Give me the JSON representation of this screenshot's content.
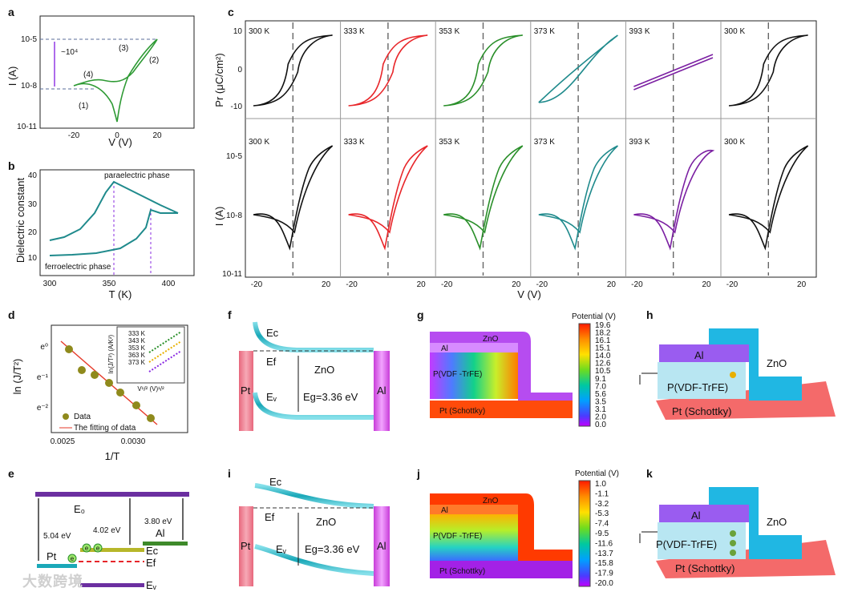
{
  "panel_labels": {
    "a": "a",
    "b": "b",
    "c": "c",
    "d": "d",
    "e": "e",
    "f": "f",
    "g": "g",
    "h": "h",
    "i": "i",
    "j": "j",
    "k": "k"
  },
  "panel_a": {
    "ylabel": "I (A)",
    "xlabel": "V (V)",
    "yticks": [
      "10-5",
      "10-8",
      "10-11"
    ],
    "xticks": [
      "-20",
      "0",
      "20"
    ],
    "annotation": "~10⁴",
    "steps": [
      "(1)",
      "(2)",
      "(3)",
      "(4)"
    ]
  },
  "panel_b": {
    "ylabel": "Dielectric constant",
    "xlabel": "T (K)",
    "xticks": [
      "300",
      "350",
      "400"
    ],
    "yticks": [
      "10",
      "20",
      "30",
      "40"
    ],
    "upper_label": "paraelectric phase",
    "lower_label": "ferroelectric phase"
  },
  "panel_c": {
    "top_ylabel": "Pr (μC/cm²)",
    "bottom_ylabel": "I (A)",
    "xlabel": "V (V)",
    "temps": [
      "300 K",
      "333 K",
      "353 K",
      "373 K",
      "393 K",
      "300 K"
    ],
    "top_yticks": [
      "10",
      "0",
      "-10"
    ],
    "bottom_yticks": [
      "10-5",
      "10-8",
      "10-11"
    ],
    "xticks": [
      "-20",
      "20"
    ],
    "colors": [
      "#111111",
      "#e8262a",
      "#2a8f2a",
      "#1f8a8c",
      "#7b1fa2",
      "#111111"
    ]
  },
  "panel_d": {
    "ylabel": "ln (J/T²)",
    "xlabel": "1/T",
    "yticks": [
      "e⁰",
      "e⁻¹",
      "e⁻²"
    ],
    "xticks": [
      "0.0025",
      "0.0030"
    ],
    "legend_data": "Data",
    "legend_fit": "The fitting of data",
    "inset_ylabel": "ln(J/T²) (A/K²)",
    "inset_xlabel": "V¹/² (V)¹/²",
    "inset_yticks": [
      "e⁻²²",
      "e⁻²⁴"
    ],
    "inset_xticks": [
      "2",
      "4"
    ],
    "inset_legend": [
      "333 K",
      "343 K",
      "353 K",
      "363 K",
      "373 K"
    ]
  },
  "panel_e": {
    "E0": "E₀",
    "v1": "5.04 eV",
    "v2": "4.02 eV",
    "v3": "3.80 eV",
    "pt": "Pt",
    "al": "Al",
    "ec": "Ec",
    "ef": "Ef",
    "ev": "Eᵥ",
    "e": "e"
  },
  "panel_f": {
    "ec": "Ec",
    "ef": "Ef",
    "ev": "Eᵥ",
    "pt": "Pt",
    "al": "Al",
    "zno": "ZnO",
    "eg": "Eg=3.36 eV"
  },
  "panel_i": {
    "ec": "Ec",
    "ef": "Ef",
    "ev": "Eᵥ",
    "pt": "Pt",
    "al": "Al",
    "zno": "ZnO",
    "eg": "Eg=3.36 eV"
  },
  "panel_g": {
    "title": "Potential (V)",
    "zno": "ZnO",
    "al": "Al",
    "pvdf": "P(VDF\n-TrFE)",
    "pt": "Pt   (Schottky)",
    "scale": [
      "19.6",
      "18.2",
      "16.1",
      "15.1",
      "14.0",
      "12.6",
      "10.5",
      "9.1",
      "7.0",
      "5.6",
      "3.5",
      "3.1",
      "2.0",
      "0.0"
    ]
  },
  "panel_j": {
    "title": "Potential (V)",
    "zno": "ZnO",
    "al": "Al",
    "pvdf": "P(VDF\n-TrFE)",
    "pt": "Pt   (Schottky)",
    "scale": [
      "1.0",
      "-1.1",
      "-3.2",
      "-5.3",
      "-7.4",
      "-9.5",
      "-11.6",
      "-13.7",
      "-15.8",
      "-17.9",
      "-20.0"
    ]
  },
  "panel_h": {
    "al": "Al",
    "zno": "ZnO",
    "pvdf": "P(VDF-TrFE)",
    "pt": "Pt   (Schottky)"
  },
  "panel_k": {
    "al": "Al",
    "zno": "ZnO",
    "pvdf": "P(VDF-TrFE)",
    "pt": "Pt   (Schottky)"
  },
  "watermark": "大数跨境"
}
